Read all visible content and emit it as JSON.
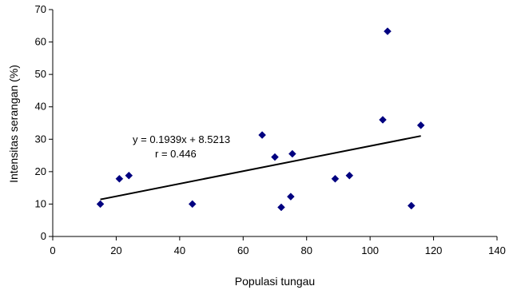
{
  "chart_data": {
    "type": "scatter",
    "xlabel": "Populasi tungau",
    "ylabel": "Intensitas serangan (%)",
    "xlim": [
      0,
      140
    ],
    "ylim": [
      0,
      70
    ],
    "x_ticks": [
      "0",
      "20",
      "40",
      "60",
      "80",
      "100",
      "120",
      "140"
    ],
    "y_ticks": [
      "0",
      "10",
      "20",
      "30",
      "40",
      "50",
      "60",
      "70"
    ],
    "grid": false,
    "legend": "none",
    "marker": "diamond",
    "marker_color": "#000080",
    "series": [
      {
        "points": [
          {
            "x": 15,
            "y": 10
          },
          {
            "x": 21,
            "y": 17.8
          },
          {
            "x": 24,
            "y": 18.8
          },
          {
            "x": 44,
            "y": 10
          },
          {
            "x": 66,
            "y": 31.3
          },
          {
            "x": 70,
            "y": 24.5
          },
          {
            "x": 72,
            "y": 9
          },
          {
            "x": 75,
            "y": 12.3
          },
          {
            "x": 75.5,
            "y": 25.5
          },
          {
            "x": 89,
            "y": 17.8
          },
          {
            "x": 93.5,
            "y": 18.8
          },
          {
            "x": 104,
            "y": 36
          },
          {
            "x": 105.5,
            "y": 63.3
          },
          {
            "x": 113,
            "y": 9.5
          },
          {
            "x": 116,
            "y": 34.3
          }
        ]
      }
    ],
    "trendline": {
      "slope": 0.1939,
      "intercept": 8.5213,
      "x_range": [
        15,
        116
      ],
      "color": "#000000"
    },
    "annotations": [
      "y = 0.1939x + 8.5213",
      "r = 0.446"
    ]
  }
}
